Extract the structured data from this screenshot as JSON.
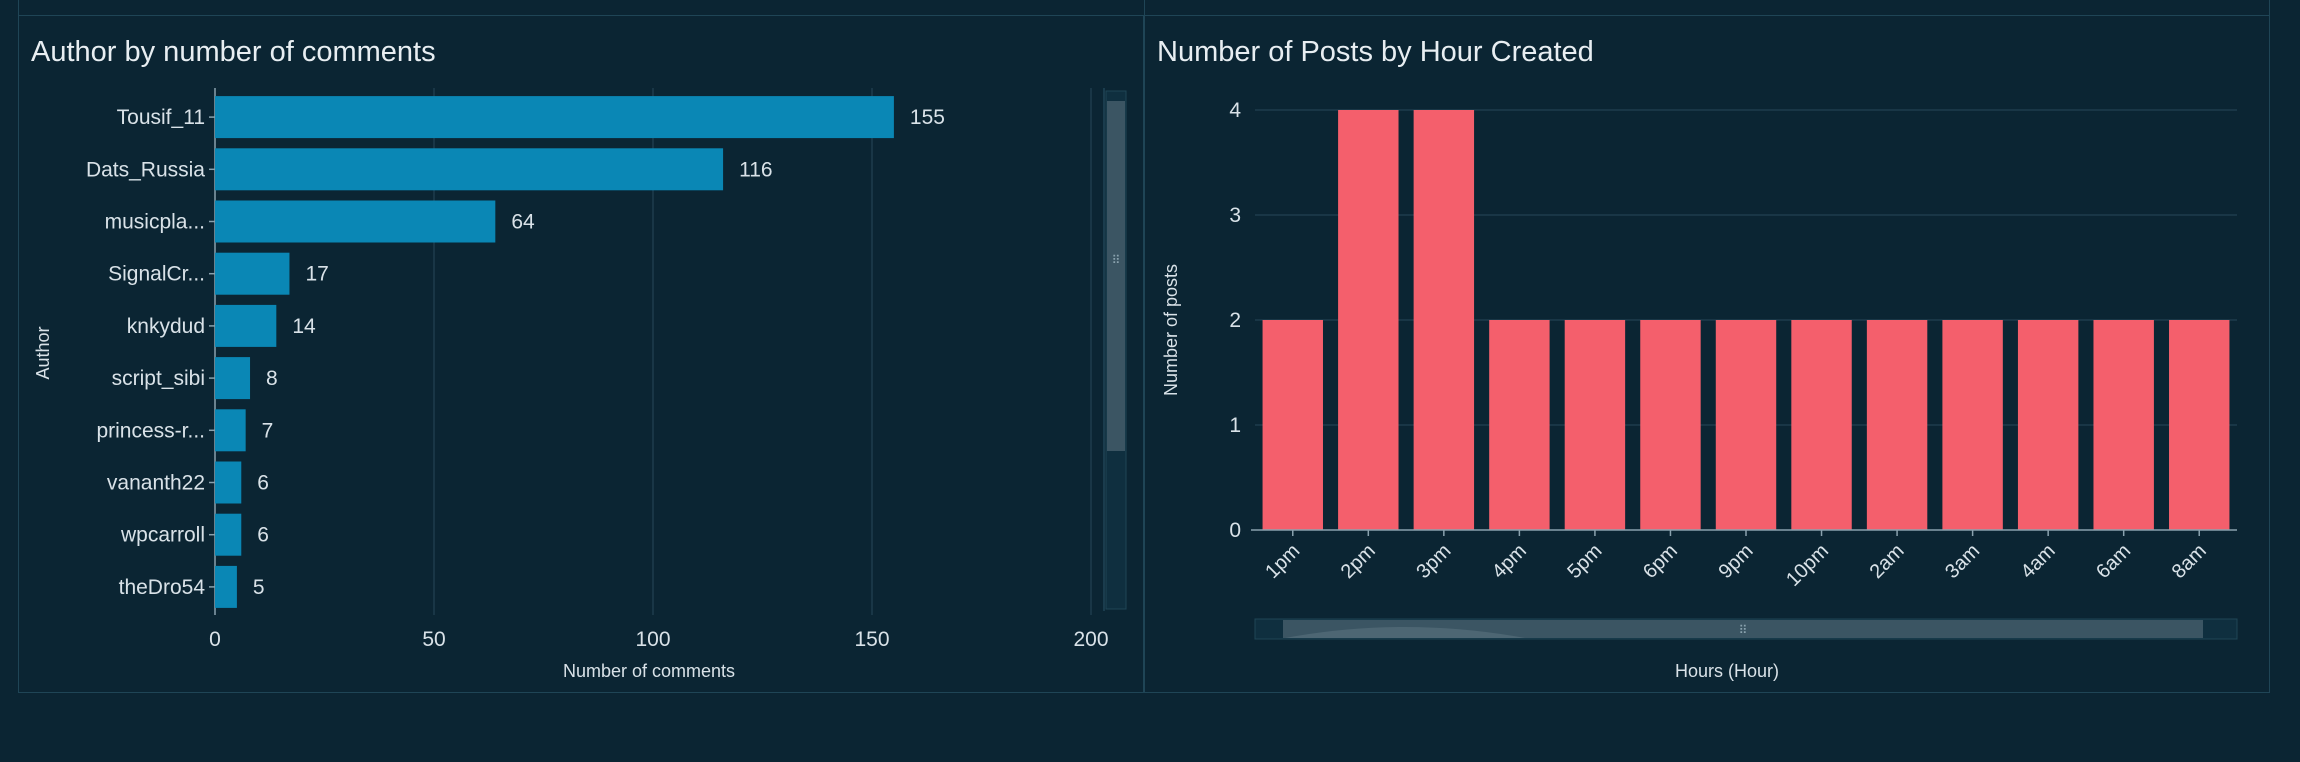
{
  "colors": {
    "background": "#0b2533",
    "bar_authors": "#0a87b5",
    "bar_hours": "#f45f6c",
    "grid": "#27485a",
    "text": "#d9e2e8"
  },
  "chart_data": [
    {
      "type": "bar",
      "orientation": "horizontal",
      "title": "Author by number of comments",
      "xlabel": "Number of comments",
      "ylabel": "Author",
      "categories": [
        "Tousif_11",
        "Dats_Russia",
        "musicpla...",
        "SignalCr...",
        "knkydud",
        "script_sibi",
        "princess-r...",
        "vananth22",
        "wpcarroll",
        "theDro54"
      ],
      "values": [
        155,
        116,
        64,
        17,
        14,
        8,
        7,
        6,
        6,
        5
      ],
      "data_labels": [
        "155",
        "116",
        "64",
        "17",
        "14",
        "8",
        "7",
        "6",
        "6",
        "5"
      ],
      "xlim": [
        0,
        200
      ],
      "xticks": [
        0,
        50,
        100,
        150,
        200
      ],
      "xtick_labels": [
        "0",
        "50",
        "100",
        "150",
        "200"
      ],
      "grid": true,
      "scrollbar": "vertical"
    },
    {
      "type": "bar",
      "title": "Number of Posts by Hour Created",
      "xlabel": "Hours (Hour)",
      "ylabel": "Number of posts",
      "categories": [
        "1pm",
        "2pm",
        "3pm",
        "4pm",
        "5pm",
        "6pm",
        "9pm",
        "10pm",
        "2am",
        "3am",
        "4am",
        "6am",
        "8am"
      ],
      "values": [
        2,
        4,
        4,
        2,
        2,
        2,
        2,
        2,
        2,
        2,
        2,
        2,
        2
      ],
      "ylim": [
        0,
        4
      ],
      "yticks": [
        0,
        1,
        2,
        3,
        4
      ],
      "ytick_labels": [
        "0",
        "1",
        "2",
        "3",
        "4"
      ],
      "grid": true,
      "scrollbar": "horizontal"
    }
  ]
}
